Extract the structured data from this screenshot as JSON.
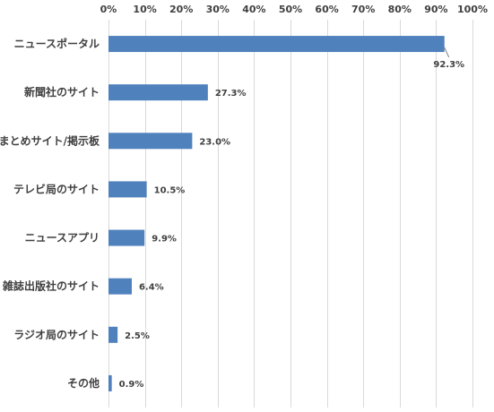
{
  "chart_data": {
    "type": "bar",
    "orientation": "horizontal",
    "categories": [
      "ニュースポータル",
      "新聞社のサイト",
      "まとめサイト/掲示板",
      "テレビ局のサイト",
      "ニュースアプリ",
      "雑誌出版社のサイト",
      "ラジオ局のサイト",
      "その他"
    ],
    "values": [
      92.3,
      27.3,
      23.0,
      10.5,
      9.9,
      6.4,
      2.5,
      0.9
    ],
    "data_labels": [
      "92.3%",
      "27.3%",
      "23.0%",
      "10.5%",
      "9.9%",
      "6.4%",
      "2.5%",
      "0.9%"
    ],
    "xlim": [
      0,
      100
    ],
    "x_ticks": [
      0,
      10,
      20,
      30,
      40,
      50,
      60,
      70,
      80,
      90,
      100
    ],
    "x_tick_labels": [
      "0%",
      "10%",
      "20%",
      "30%",
      "40%",
      "50%",
      "60%",
      "70%",
      "80%",
      "90%",
      "100%"
    ],
    "x_axis_position": "top",
    "grid": true,
    "legend": "none",
    "bar_color": "#4F81BD",
    "grid_color": "#D9D9D9",
    "text_color": "#404040"
  }
}
